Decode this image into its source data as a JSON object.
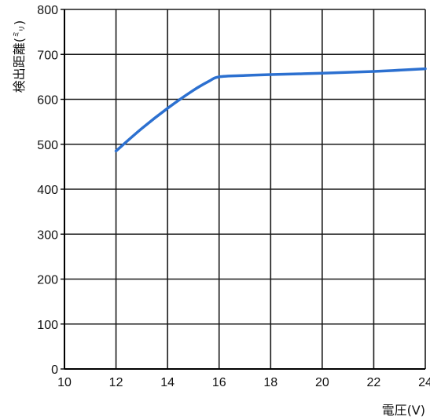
{
  "chart_data": {
    "type": "line",
    "xlabel": "電圧(V)",
    "ylabel": "検出距離(㍉)",
    "xlim": [
      10,
      24
    ],
    "ylim": [
      0,
      800
    ],
    "x_ticks": [
      "10",
      "12",
      "14",
      "16",
      "18",
      "20",
      "22",
      "24"
    ],
    "y_ticks": [
      "0",
      "100",
      "200",
      "300",
      "400",
      "500",
      "600",
      "700",
      "800"
    ],
    "grid": true,
    "series": [
      {
        "x": [
          12,
          13,
          14,
          15,
          15.6,
          16,
          17,
          18,
          20,
          22,
          24
        ],
        "y": [
          485,
          535,
          580,
          620,
          640,
          650,
          653,
          655,
          658,
          662,
          668
        ]
      }
    ],
    "colors": {
      "line": "#2c70d0",
      "grid": "#1a1a1a",
      "axis": "#000000"
    }
  }
}
